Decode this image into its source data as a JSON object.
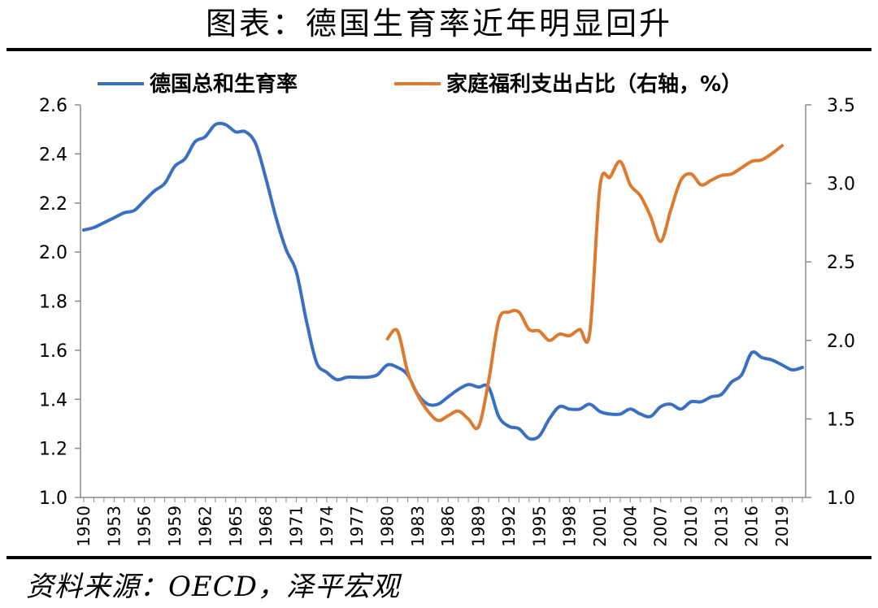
{
  "page": {
    "title": "图表：德国生育率近年明显回升",
    "source": "资料来源：OECD，泽平宏观"
  },
  "chart_data": {
    "type": "line",
    "colors": {
      "blue": "#3a6fc2",
      "orange": "#de7a2f",
      "axis": "#8c8c8c"
    },
    "legend_position": "top",
    "grid": false,
    "x_tick_labels": [
      "1950",
      "1953",
      "1956",
      "1959",
      "1962",
      "1965",
      "1968",
      "1971",
      "1974",
      "1977",
      "1980",
      "1983",
      "1986",
      "1989",
      "1992",
      "1995",
      "1998",
      "2001",
      "2004",
      "2007",
      "2010",
      "2013",
      "2016",
      "2019"
    ],
    "xlim": [
      1950,
      2021
    ],
    "y_left": {
      "lim": [
        1.0,
        2.6
      ],
      "ticks": [
        "1.0",
        "1.2",
        "1.4",
        "1.6",
        "1.8",
        "2.0",
        "2.2",
        "2.4",
        "2.6"
      ]
    },
    "y_right": {
      "lim": [
        1.0,
        3.5
      ],
      "ticks": [
        "1.0",
        "1.5",
        "2.0",
        "2.5",
        "3.0",
        "3.5"
      ]
    },
    "series": [
      {
        "name": "德国总和生育率",
        "axis": "left",
        "color": "#3a6fc2",
        "x": [
          1950,
          1951,
          1952,
          1953,
          1954,
          1955,
          1956,
          1957,
          1958,
          1959,
          1960,
          1961,
          1962,
          1963,
          1964,
          1965,
          1966,
          1967,
          1968,
          1969,
          1970,
          1971,
          1972,
          1973,
          1974,
          1975,
          1976,
          1977,
          1978,
          1979,
          1980,
          1981,
          1982,
          1983,
          1984,
          1985,
          1986,
          1987,
          1988,
          1989,
          1990,
          1991,
          1992,
          1993,
          1994,
          1995,
          1996,
          1997,
          1998,
          1999,
          2000,
          2001,
          2002,
          2003,
          2004,
          2005,
          2006,
          2007,
          2008,
          2009,
          2010,
          2011,
          2012,
          2013,
          2014,
          2015,
          2016,
          2017,
          2018,
          2019,
          2020,
          2021
        ],
        "values": [
          2.09,
          2.1,
          2.12,
          2.14,
          2.16,
          2.17,
          2.21,
          2.25,
          2.28,
          2.35,
          2.38,
          2.45,
          2.47,
          2.52,
          2.52,
          2.49,
          2.49,
          2.44,
          2.3,
          2.14,
          2.01,
          1.92,
          1.72,
          1.55,
          1.51,
          1.48,
          1.49,
          1.49,
          1.49,
          1.5,
          1.54,
          1.53,
          1.5,
          1.42,
          1.38,
          1.38,
          1.41,
          1.44,
          1.46,
          1.45,
          1.45,
          1.33,
          1.29,
          1.28,
          1.24,
          1.25,
          1.32,
          1.37,
          1.36,
          1.36,
          1.38,
          1.35,
          1.34,
          1.34,
          1.36,
          1.34,
          1.33,
          1.37,
          1.38,
          1.36,
          1.39,
          1.39,
          1.41,
          1.42,
          1.47,
          1.5,
          1.59,
          1.57,
          1.56,
          1.54,
          1.52,
          1.53
        ]
      },
      {
        "name": "家庭福利支出占比（右轴，%）",
        "axis": "right",
        "color": "#de7a2f",
        "x": [
          1980,
          1981,
          1982,
          1983,
          1984,
          1985,
          1986,
          1987,
          1988,
          1989,
          1990,
          1991,
          1992,
          1993,
          1994,
          1995,
          1996,
          1997,
          1998,
          1999,
          2000,
          2001,
          2002,
          2003,
          2004,
          2005,
          2006,
          2007,
          2008,
          2009,
          2010,
          2011,
          2012,
          2013,
          2014,
          2015,
          2016,
          2017,
          2018,
          2019
        ],
        "values": [
          2.01,
          2.06,
          1.8,
          1.65,
          1.55,
          1.49,
          1.52,
          1.55,
          1.5,
          1.45,
          1.74,
          2.13,
          2.18,
          2.18,
          2.07,
          2.06,
          2.0,
          2.04,
          2.03,
          2.07,
          2.05,
          2.98,
          3.04,
          3.14,
          2.99,
          2.92,
          2.79,
          2.63,
          2.83,
          3.02,
          3.06,
          2.99,
          3.02,
          3.05,
          3.06,
          3.1,
          3.14,
          3.15,
          3.19,
          3.24
        ]
      }
    ]
  }
}
